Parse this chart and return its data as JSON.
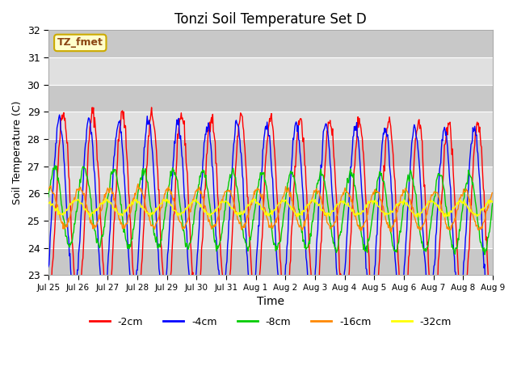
{
  "title": "Tonzi Soil Temperature Set D",
  "xlabel": "Time",
  "ylabel": "Soil Temperature (C)",
  "ylim": [
    23.0,
    32.0
  ],
  "yticks": [
    23.0,
    24.0,
    25.0,
    26.0,
    27.0,
    28.0,
    29.0,
    30.0,
    31.0,
    32.0
  ],
  "xtick_labels": [
    "Jul 25",
    "Jul 26",
    "Jul 27",
    "Jul 28",
    "Jul 29",
    "Jul 30",
    "Jul 31",
    "Aug 1",
    "Aug 2",
    "Aug 3",
    "Aug 4",
    "Aug 5",
    "Aug 6",
    "Aug 7",
    "Aug 8",
    "Aug 9"
  ],
  "annotation": "TZ_fmet",
  "legend_labels": [
    "-2cm",
    "-4cm",
    "-8cm",
    "-16cm",
    "-32cm"
  ],
  "line_colors": [
    "#ff0000",
    "#0000ff",
    "#00cc00",
    "#ff8800",
    "#ffff00"
  ],
  "n_days": 15,
  "points_per_day": 48,
  "depths_mean": [
    25.5,
    25.5,
    25.5,
    25.5,
    25.5
  ],
  "depths_amp": [
    3.5,
    3.2,
    1.4,
    0.7,
    0.25
  ],
  "depths_phase": [
    0.0,
    0.8,
    1.8,
    2.8,
    3.5
  ],
  "trend": [
    -0.03,
    -0.025,
    -0.015,
    -0.008,
    -0.003
  ],
  "noise_amp": [
    0.15,
    0.12,
    0.08,
    0.06,
    0.04
  ]
}
